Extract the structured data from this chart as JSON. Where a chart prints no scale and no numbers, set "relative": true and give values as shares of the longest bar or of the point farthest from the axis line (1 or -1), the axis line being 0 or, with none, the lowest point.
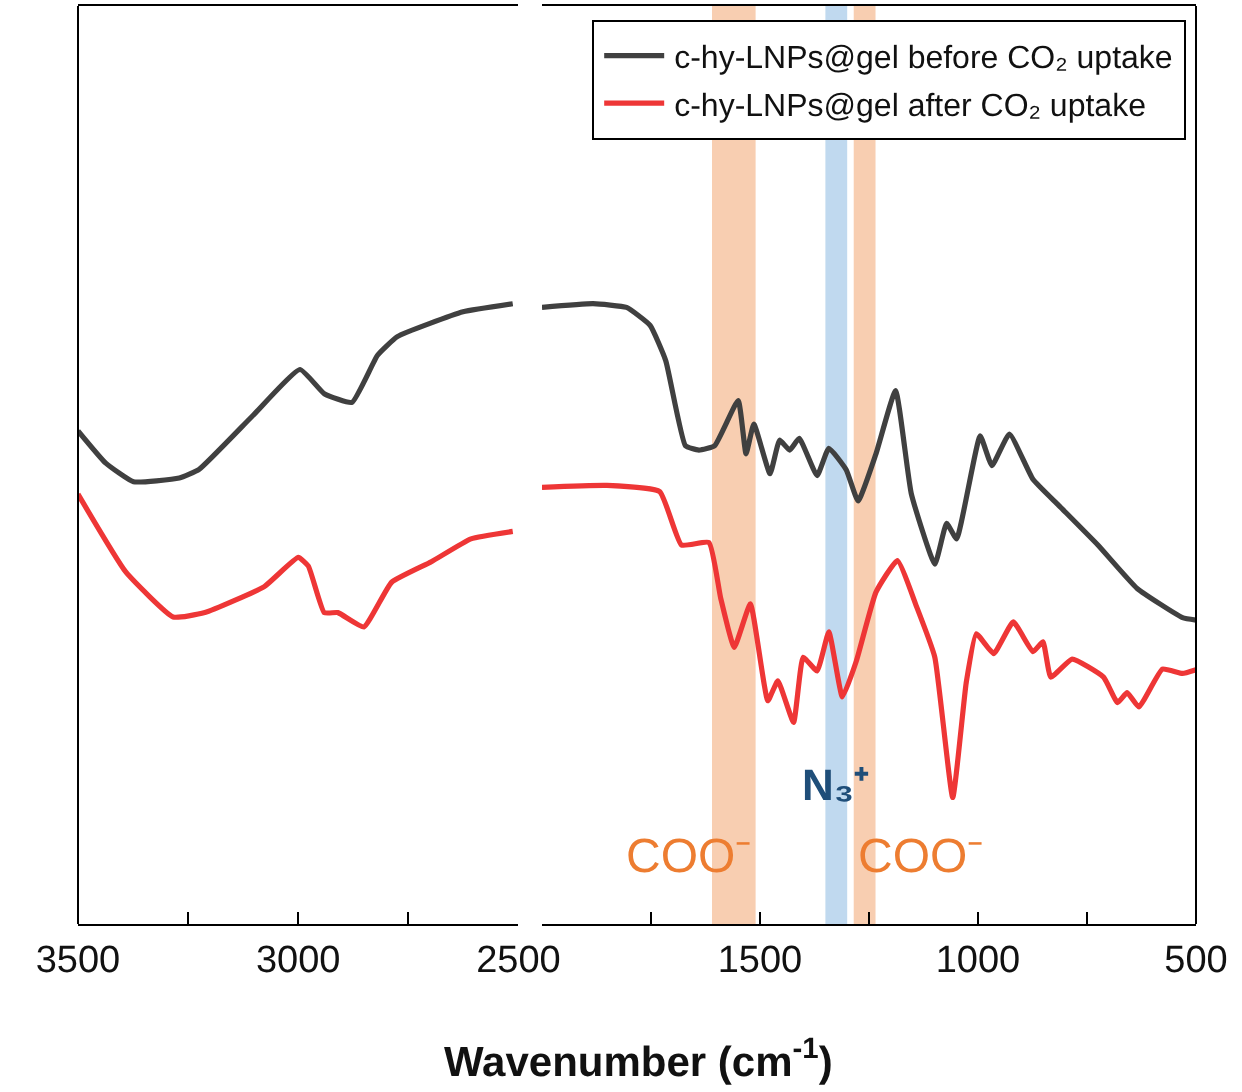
{
  "chart_data": [
    {
      "type": "line",
      "relative": true,
      "xlim": [
        3500,
        2500
      ],
      "xticks": [
        3500,
        {
          "value": 3250,
          "label": null
        },
        3000,
        {
          "value": 2750,
          "label": null
        },
        2500
      ],
      "tick_labels": "x",
      "legend": false,
      "grid": false,
      "series": [
        {
          "color": "#404040",
          "x": [
            3500,
            3437,
            3374,
            3270,
            3225,
            3104,
            2996,
            2941,
            2878,
            2820,
            2775,
            2626,
            2513
          ],
          "values": [
            0.795,
            0.743,
            0.713,
            0.719,
            0.733,
            0.819,
            0.894,
            0.855,
            0.841,
            0.917,
            0.947,
            0.987,
            1.0
          ]
        },
        {
          "color": "#ee3636",
          "x": [
            3500,
            3392,
            3284,
            3212,
            3077,
            3000,
            2977,
            2941,
            2910,
            2851,
            2788,
            2698,
            2608,
            2513
          ],
          "values": [
            0.693,
            0.568,
            0.495,
            0.502,
            0.544,
            0.591,
            0.577,
            0.502,
            0.502,
            0.479,
            0.551,
            0.584,
            0.621,
            0.633
          ]
        }
      ]
    },
    {
      "type": "line",
      "relative": true,
      "xlim": [
        2000,
        500
      ],
      "xticks": [
        {
          "value": 1750,
          "label": null
        },
        1500,
        {
          "value": 1250,
          "label": null
        },
        1000,
        {
          "value": 750,
          "label": null
        },
        500
      ],
      "tick_labels": "x",
      "legend": "top right",
      "grid": false,
      "xlabel": "Wavenumber (cm$^{-1}$)",
      "bands": [
        {
          "axis": "x",
          "from": 1610,
          "to": 1510,
          "label": "COO⁻",
          "color": "#f8cbad"
        },
        {
          "axis": "x",
          "from": 1350,
          "to": 1300,
          "label": "N₃⁺",
          "color": "#bdd7ee"
        },
        {
          "axis": "x",
          "from": 1285,
          "to": 1235,
          "label": "COO⁻",
          "color": "#f8cbad"
        }
      ],
      "series": [
        {
          "name": "c-hy-LNPs@gel before CO₂ uptake",
          "color": "#404040",
          "x": [
            2000,
            1883,
            1806,
            1752,
            1716,
            1671,
            1640,
            1604,
            1550,
            1532,
            1514,
            1477,
            1455,
            1432,
            1410,
            1369,
            1342,
            1302,
            1275,
            1234,
            1189,
            1153,
            1099,
            1072,
            1049,
            995,
            968,
            928,
            874,
            815,
            725,
            635,
            531,
            500
          ],
          "values": [
            0.994,
            1.0,
            0.994,
            0.965,
            0.908,
            0.771,
            0.764,
            0.771,
            0.844,
            0.758,
            0.806,
            0.726,
            0.78,
            0.764,
            0.783,
            0.723,
            0.767,
            0.732,
            0.682,
            0.758,
            0.86,
            0.694,
            0.58,
            0.646,
            0.621,
            0.787,
            0.739,
            0.79,
            0.717,
            0.675,
            0.611,
            0.541,
            0.494,
            0.49
          ]
        },
        {
          "name": "c-hy-LNPs@gel after CO₂ uptake",
          "color": "#ee3636",
          "x": [
            2000,
            1851,
            1730,
            1680,
            1617,
            1590,
            1559,
            1522,
            1482,
            1459,
            1423,
            1401,
            1369,
            1342,
            1311,
            1279,
            1234,
            1185,
            1140,
            1099,
            1058,
            1027,
            1004,
            964,
            919,
            874,
            851,
            833,
            784,
            712,
            680,
            658,
            631,
            577,
            531,
            500
          ],
          "values": [
            0.704,
            0.707,
            0.697,
            0.611,
            0.615,
            0.525,
            0.446,
            0.516,
            0.36,
            0.392,
            0.325,
            0.43,
            0.408,
            0.471,
            0.366,
            0.424,
            0.535,
            0.586,
            0.51,
            0.43,
            0.204,
            0.389,
            0.468,
            0.436,
            0.487,
            0.439,
            0.455,
            0.398,
            0.427,
            0.398,
            0.357,
            0.373,
            0.35,
            0.411,
            0.404,
            0.41
          ]
        }
      ]
    }
  ]
}
